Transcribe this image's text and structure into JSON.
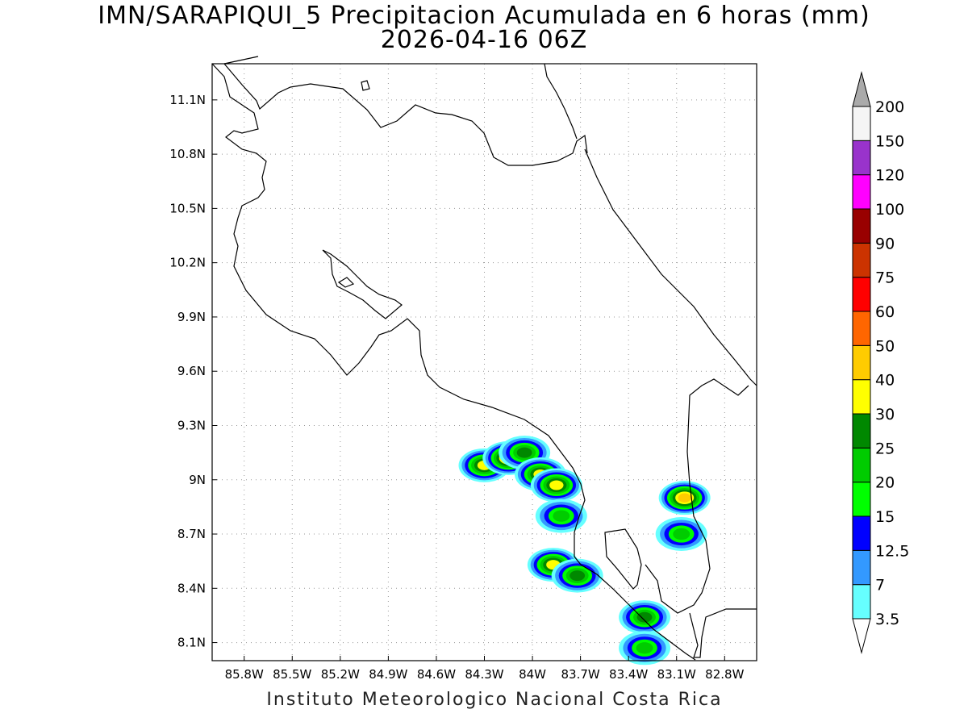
{
  "title": {
    "line1": "IMN/SARAPIQUI_5 Precipitacion Acumulada en 6 horas (mm)",
    "line2": "2026-04-16 06Z"
  },
  "footer": "Instituto Meteorologico Nacional Costa Rica",
  "axes": {
    "x_ticks": [
      "85.8W",
      "85.5W",
      "85.2W",
      "84.9W",
      "84.6W",
      "84.3W",
      "84W",
      "83.7W",
      "83.4W",
      "83.1W",
      "82.8W"
    ],
    "y_ticks": [
      "11.1N",
      "10.8N",
      "10.5N",
      "10.2N",
      "9.9N",
      "9.6N",
      "9.3N",
      "9N",
      "8.7N",
      "8.4N",
      "8.1N"
    ],
    "lon_range": [
      -86.0,
      -82.6
    ],
    "lat_range": [
      8.0,
      11.3
    ],
    "grid": true
  },
  "colorbar": {
    "levels": [
      "3.5",
      "7",
      "12.5",
      "15",
      "20",
      "25",
      "30",
      "40",
      "50",
      "60",
      "75",
      "90",
      "100",
      "120",
      "150",
      "200"
    ],
    "colors": [
      "#66ffff",
      "#3399ff",
      "#0000ff",
      "#00ff00",
      "#00cc00",
      "#008800",
      "#ffff00",
      "#ffcc00",
      "#ff6600",
      "#ff0000",
      "#cc3300",
      "#990000",
      "#ff00ff",
      "#9933cc",
      "#f5f5f5"
    ],
    "under_color": "#ffffff",
    "over_color": "#aaaaaa"
  },
  "precip_areas": [
    {
      "lon": -84.3,
      "lat": 9.08,
      "value": 30
    },
    {
      "lon": -84.15,
      "lat": 9.12,
      "value": 40
    },
    {
      "lon": -84.05,
      "lat": 9.15,
      "value": 25
    },
    {
      "lon": -83.95,
      "lat": 9.03,
      "value": 30
    },
    {
      "lon": -83.85,
      "lat": 8.97,
      "value": 30
    },
    {
      "lon": -83.82,
      "lat": 8.8,
      "value": 20
    },
    {
      "lon": -83.87,
      "lat": 8.53,
      "value": 30
    },
    {
      "lon": -83.72,
      "lat": 8.47,
      "value": 25
    },
    {
      "lon": -83.05,
      "lat": 8.9,
      "value": 40
    },
    {
      "lon": -83.07,
      "lat": 8.7,
      "value": 20
    },
    {
      "lon": -83.3,
      "lat": 8.24,
      "value": 25
    },
    {
      "lon": -83.3,
      "lat": 8.07,
      "value": 20
    }
  ]
}
